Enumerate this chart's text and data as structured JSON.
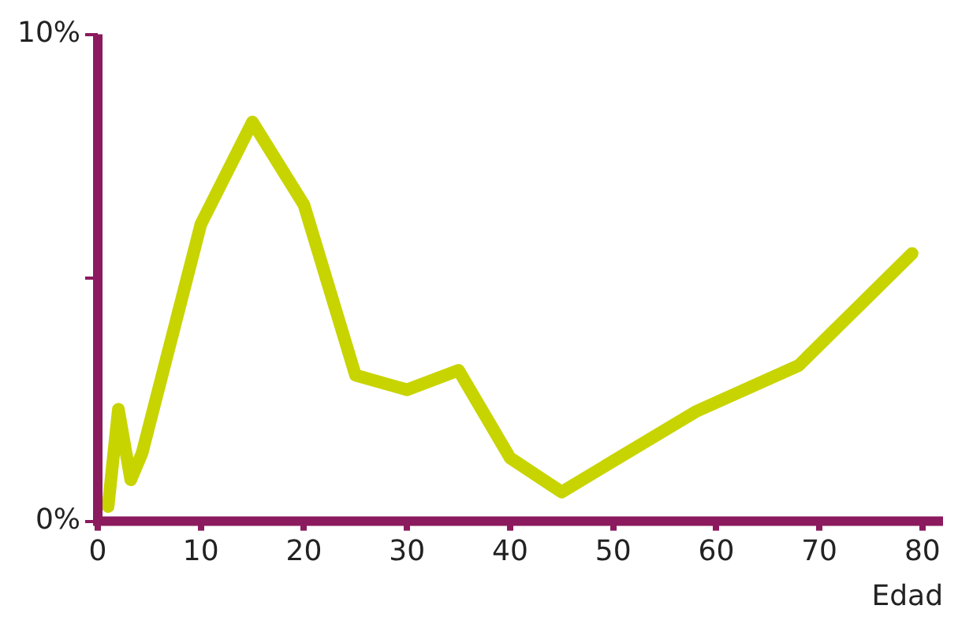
{
  "chart_data": {
    "type": "line",
    "xlabel": "Edad",
    "x": [
      1,
      2,
      3.2,
      4.3,
      10,
      15,
      20,
      25,
      30,
      35,
      40,
      45,
      58,
      68,
      79
    ],
    "series": [
      {
        "color": "#c8d400",
        "values": [
          0.3,
          2.3,
          0.85,
          1.4,
          6.1,
          8.2,
          6.5,
          3.0,
          2.7,
          3.1,
          1.3,
          0.6,
          2.25,
          3.2,
          5.5
        ]
      }
    ],
    "xlim": [
      0,
      82
    ],
    "ylim": [
      0,
      10
    ],
    "xticks": [
      0,
      10,
      20,
      30,
      40,
      50,
      60,
      70,
      80
    ],
    "yticks": [
      {
        "value": 0,
        "label": "0%"
      },
      {
        "value": 5,
        "label": null
      },
      {
        "value": 10,
        "label": "10%"
      }
    ],
    "grid": false,
    "legend": false,
    "marker": "none",
    "line_style": "solid"
  }
}
